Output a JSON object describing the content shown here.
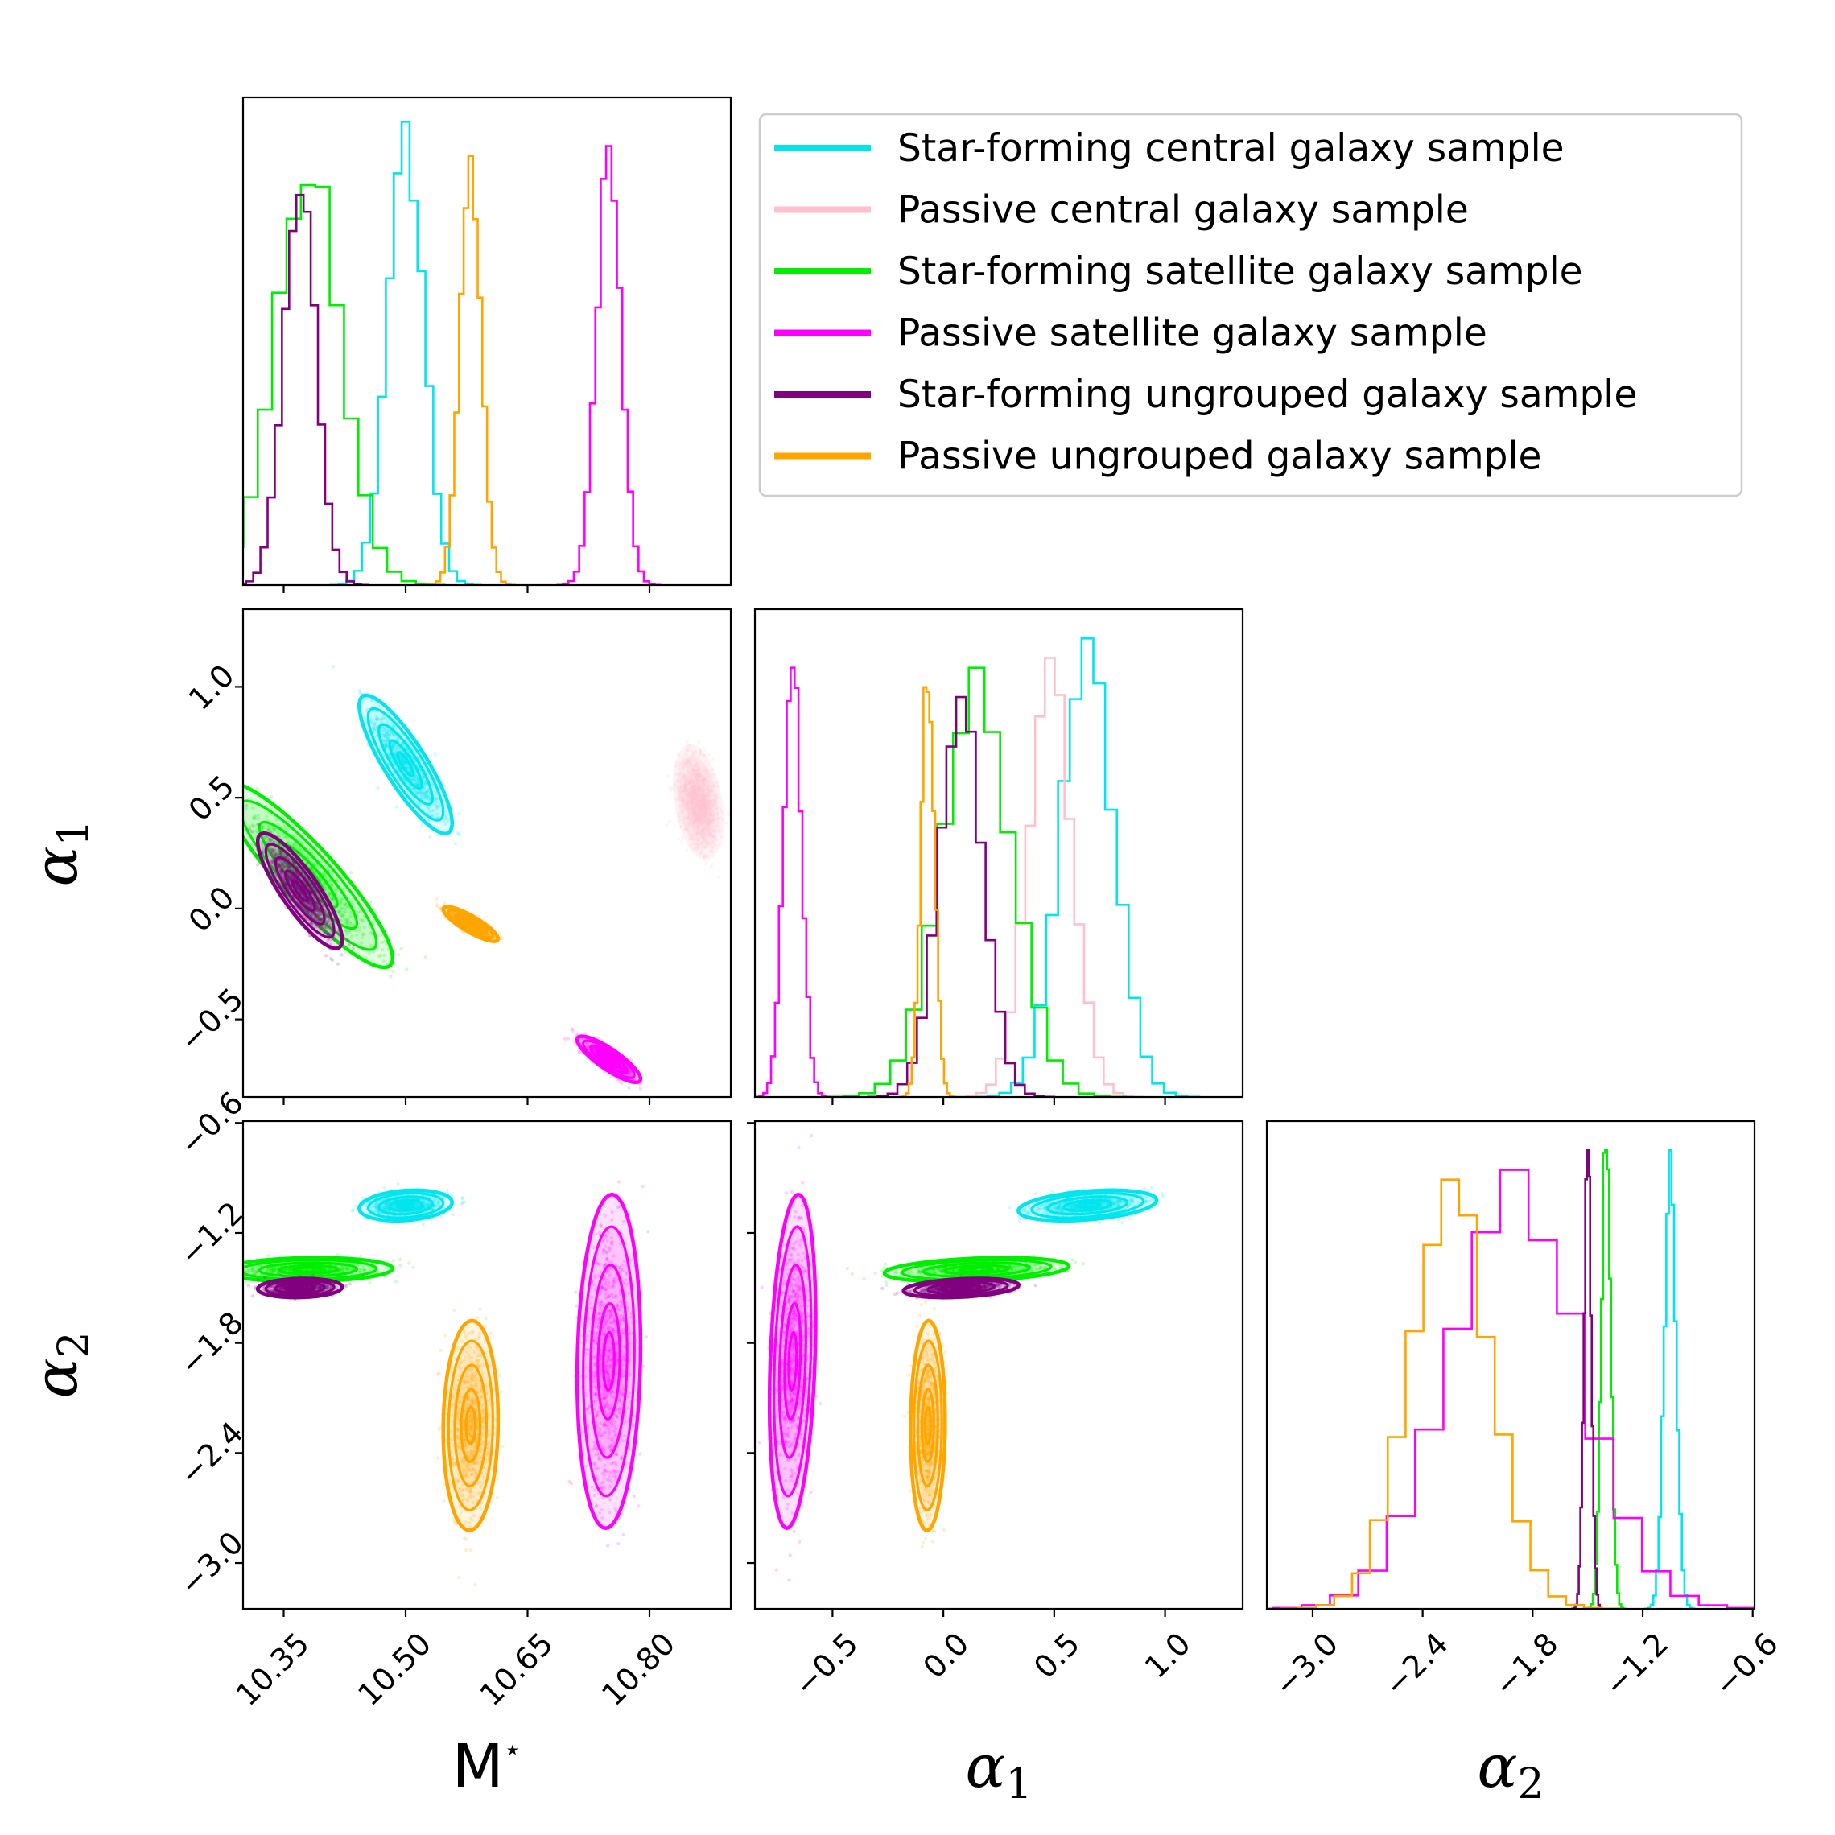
{
  "chart_data": {
    "type": "scatter",
    "title": "",
    "parameters": [
      {
        "name": "M*",
        "label_main": "M",
        "label_sup": "⋆",
        "range": [
          10.3,
          10.9
        ],
        "ticks": [
          10.35,
          10.5,
          10.65,
          10.8
        ],
        "tick_labels": [
          "10.35",
          "10.50",
          "10.65",
          "10.80"
        ]
      },
      {
        "name": "alpha1",
        "label_main": "α",
        "label_sub": "1",
        "range": [
          -0.85,
          1.35
        ],
        "ticks": [
          -0.5,
          0.0,
          0.5,
          1.0
        ],
        "tick_labels": [
          "−0.5",
          "0.0",
          "0.5",
          "1.0"
        ]
      },
      {
        "name": "alpha2",
        "label_main": "α",
        "label_sub": "2",
        "range": [
          -3.25,
          -0.59
        ],
        "ticks": [
          -3.0,
          -2.4,
          -1.8,
          -1.2,
          -0.6
        ],
        "tick_labels": [
          "−3.0",
          "−2.4",
          "−1.8",
          "−1.2",
          "−0.6"
        ]
      }
    ],
    "series": [
      {
        "name": "Star-forming central galaxy sample",
        "color": "#00e5ee",
        "mean": [
          10.5,
          0.65,
          -1.05
        ],
        "sd": [
          0.022,
          0.12,
          0.032
        ],
        "corr": [
          [
            1,
            -0.85,
            0.2
          ],
          [
            -0.85,
            1,
            0.35
          ],
          [
            0.2,
            0.35,
            1
          ]
        ],
        "has_m": true
      },
      {
        "name": "Passive central galaxy sample",
        "color": "#ffc0cb",
        "mean": [
          10.86,
          0.48,
          null
        ],
        "sd": [
          0.012,
          0.1,
          null
        ],
        "corr": [
          [
            1,
            -0.3,
            0
          ],
          [
            -0.3,
            1,
            0
          ],
          [
            0,
            0,
            1
          ]
        ],
        "has_m": true
      },
      {
        "name": "Star-forming satellite galaxy sample",
        "color": "#00ee00",
        "mean": [
          10.38,
          0.15,
          -1.4
        ],
        "sd": [
          0.04,
          0.16,
          0.025
        ],
        "corr": [
          [
            1,
            -0.9,
            0.1
          ],
          [
            -0.9,
            1,
            0.3
          ],
          [
            0.1,
            0.3,
            1
          ]
        ],
        "has_m": true
      },
      {
        "name": "Passive satellite galaxy sample",
        "color": "#ff00ff",
        "mean": [
          10.75,
          -0.68,
          -1.9
        ],
        "sd": [
          0.015,
          0.04,
          0.35
        ],
        "corr": [
          [
            1,
            -0.85,
            0.1
          ],
          [
            -0.85,
            1,
            0.25
          ],
          [
            0.1,
            0.25,
            1
          ]
        ],
        "has_m": true
      },
      {
        "name": "Star-forming ungrouped galaxy sample",
        "color": "#800080",
        "mean": [
          10.37,
          0.08,
          -1.5
        ],
        "sd": [
          0.02,
          0.1,
          0.02
        ],
        "corr": [
          [
            1,
            -0.85,
            0.1
          ],
          [
            -0.85,
            1,
            0.3
          ],
          [
            0.1,
            0.3,
            1
          ]
        ],
        "has_m": true
      },
      {
        "name": "Passive ungrouped galaxy sample",
        "color": "#ffa500",
        "mean": [
          10.58,
          -0.07,
          -2.25
        ],
        "sd": [
          0.013,
          0.03,
          0.22
        ],
        "corr": [
          [
            1,
            -0.85,
            0.05
          ],
          [
            -0.85,
            1,
            0.05
          ],
          [
            0.05,
            0.05,
            1
          ]
        ],
        "has_m": true
      }
    ],
    "legend": {
      "placement": "top-right"
    }
  }
}
